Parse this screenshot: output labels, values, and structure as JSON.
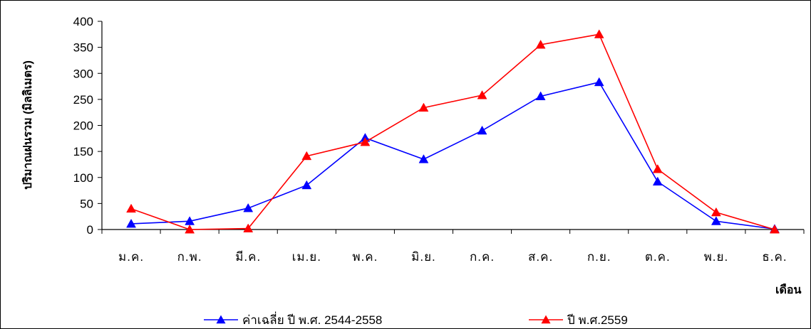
{
  "chart_data": {
    "type": "line",
    "title": "",
    "xlabel": "เดือน",
    "ylabel": "ปริมาณฝนรวม (มิลลิเมตร)",
    "ylim": [
      0,
      400
    ],
    "yticks": [
      0,
      50,
      100,
      150,
      200,
      250,
      300,
      350,
      400
    ],
    "categories": [
      "ม.ค.",
      "ก.พ.",
      "มี.ค.",
      "เม.ย.",
      "พ.ค.",
      "มิ.ย.",
      "ก.ค.",
      "ส.ค.",
      "ก.ย.",
      "ต.ค.",
      "พ.ย.",
      "ธ.ค."
    ],
    "grid": false,
    "legend_position": "bottom",
    "series": [
      {
        "name": "ค่าเฉลี่ย ปี พ.ศ. 2544-2558",
        "color": "#0000ff",
        "marker": "triangle",
        "values": [
          11,
          16,
          41,
          85,
          176,
          135,
          190,
          256,
          283,
          92,
          16,
          1
        ]
      },
      {
        "name": "ปี พ.ศ.2559",
        "color": "#ff0000",
        "marker": "triangle",
        "values": [
          40,
          0,
          2,
          141,
          168,
          234,
          258,
          355,
          375,
          116,
          33,
          0
        ]
      }
    ]
  }
}
